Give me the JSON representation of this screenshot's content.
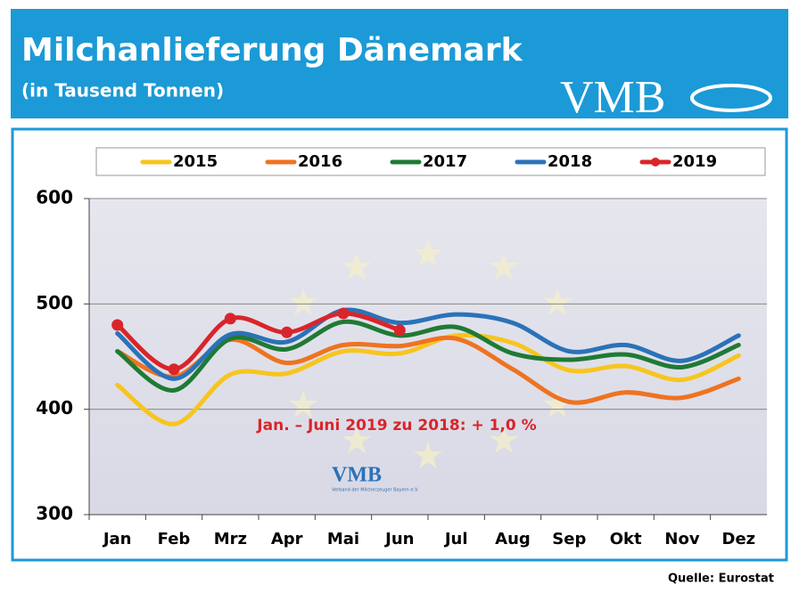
{
  "header": {
    "title": "Milchanlieferung Dänemark",
    "subtitle": "(in Tausend Tonnen)",
    "logo": "VMB"
  },
  "chart_data": {
    "type": "line",
    "categories": [
      "Jan",
      "Feb",
      "Mrz",
      "Apr",
      "Mai",
      "Jun",
      "Jul",
      "Aug",
      "Sep",
      "Okt",
      "Nov",
      "Dez"
    ],
    "series": [
      {
        "name": "2015",
        "color": "#f7c51e",
        "values": [
          423,
          386,
          433,
          434,
          455,
          453,
          470,
          463,
          437,
          441,
          428,
          451
        ]
      },
      {
        "name": "2016",
        "color": "#ee7320",
        "values": [
          455,
          431,
          466,
          444,
          461,
          460,
          467,
          438,
          407,
          416,
          411,
          429
        ]
      },
      {
        "name": "2017",
        "color": "#1f7a34",
        "values": [
          455,
          418,
          467,
          457,
          483,
          470,
          478,
          453,
          447,
          452,
          440,
          461
        ]
      },
      {
        "name": "2018",
        "color": "#2b72b8",
        "values": [
          472,
          429,
          471,
          464,
          494,
          482,
          490,
          482,
          455,
          461,
          446,
          470
        ]
      },
      {
        "name": "2019",
        "color": "#d9252a",
        "markers": true,
        "values": [
          480,
          438,
          486,
          473,
          491,
          475,
          null,
          null,
          null,
          null,
          null,
          null
        ]
      }
    ],
    "ylim": [
      300,
      600
    ],
    "yticks": [
      300,
      400,
      500,
      600
    ],
    "grid": true,
    "legend": "top",
    "annotation": "Jan. – Juni 2019 zu 2018:  + 1,0 %",
    "watermark": "VMB",
    "watermark_subtitle": "Verband der Milcherzeuger Bayern e.V.",
    "source": "Quelle: Eurostat"
  }
}
